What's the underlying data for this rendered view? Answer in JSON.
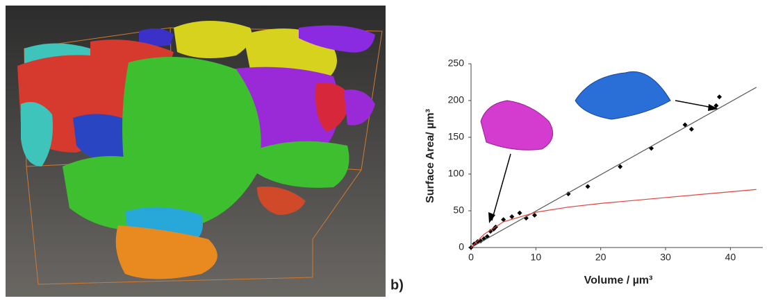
{
  "chart_data": {
    "type": "scatter",
    "x_label": "Volume / µm³",
    "y_label": "Surface Area/ µm³",
    "annotation": "b)",
    "xlim": [
      0,
      45
    ],
    "ylim": [
      0,
      250
    ],
    "xticks": [
      0,
      10,
      20,
      30,
      40
    ],
    "yticks": [
      0,
      50,
      100,
      150,
      200,
      250
    ],
    "series": [
      {
        "mode": "markers",
        "color": "#000000",
        "x": [
          0,
          0.5,
          1,
          1.5,
          2,
          2.5,
          3,
          3.5,
          3.8,
          5,
          6.3,
          7.5,
          8.5,
          9.8,
          15,
          18,
          23,
          27.8,
          33,
          34,
          37.8,
          38.3
        ],
        "values": [
          0,
          5,
          8,
          9,
          12,
          15,
          22,
          25,
          28,
          38,
          42,
          47,
          40,
          44,
          73,
          83,
          110,
          135,
          167,
          161,
          193,
          205
        ]
      },
      {
        "mode": "line",
        "color": "#555555",
        "x": [
          0,
          44
        ],
        "values": [
          0,
          218
        ]
      },
      {
        "mode": "line",
        "color": "#e8403a",
        "x": [
          0,
          2,
          5,
          10,
          15,
          20,
          30,
          44
        ],
        "values": [
          0,
          18,
          35,
          48,
          55,
          60,
          68,
          79
        ]
      }
    ]
  }
}
